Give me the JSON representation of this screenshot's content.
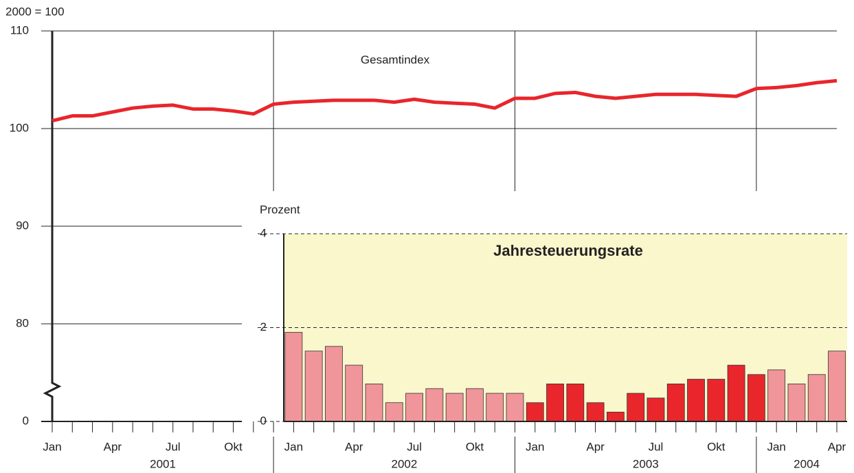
{
  "chart_data": [
    {
      "type": "line",
      "y_label": "2000 = 100",
      "annotation": "Gesamtindex",
      "color": "#e8262c",
      "categories": [
        "Jan",
        null,
        null,
        "Apr",
        null,
        null,
        "Jul",
        null,
        null,
        "Okt",
        null,
        null,
        "Jan",
        null,
        null,
        "Apr",
        null,
        null,
        "Jul",
        null,
        null,
        "Okt",
        null,
        null,
        "Jan",
        null,
        null,
        "Apr",
        null,
        null,
        "Jul",
        null,
        null,
        "Okt",
        null,
        null,
        "Jan",
        null,
        null,
        "Apr"
      ],
      "years": [
        "2001",
        "2002",
        "2003",
        "2004"
      ],
      "values": [
        100.8,
        101.3,
        101.3,
        101.7,
        102.1,
        102.3,
        102.4,
        102.0,
        102.0,
        101.8,
        101.5,
        102.5,
        102.7,
        102.8,
        102.9,
        102.9,
        102.9,
        102.7,
        103.0,
        102.7,
        102.6,
        102.5,
        102.1,
        103.1,
        103.1,
        103.6,
        103.7,
        103.3,
        103.1,
        103.3,
        103.5,
        103.5,
        103.5,
        103.4,
        103.3,
        104.1,
        104.2,
        104.4,
        104.7,
        104.9
      ],
      "ylim": [
        0,
        110
      ],
      "y_break": [
        0,
        80
      ],
      "yticks": [
        0,
        80,
        90,
        100,
        110
      ],
      "grid": true
    },
    {
      "type": "bar",
      "title": "Jahresteuerungsrate",
      "y_label": "Prozent",
      "background": "#faf7cc",
      "values": [
        null,
        null,
        null,
        null,
        null,
        null,
        null,
        null,
        null,
        null,
        null,
        null,
        1.9,
        1.5,
        1.6,
        1.2,
        0.8,
        0.4,
        0.6,
        0.7,
        0.6,
        0.7,
        0.6,
        0.6,
        0.4,
        0.8,
        0.8,
        0.4,
        0.2,
        0.6,
        0.5,
        0.8,
        0.9,
        0.9,
        1.2,
        1.0,
        1.1,
        0.8,
        1.0,
        1.5
      ],
      "colors": [
        null,
        null,
        null,
        null,
        null,
        null,
        null,
        null,
        null,
        null,
        null,
        null,
        "#f0959a",
        "#f0959a",
        "#f0959a",
        "#f0959a",
        "#f0959a",
        "#f0959a",
        "#f0959a",
        "#f0959a",
        "#f0959a",
        "#f0959a",
        "#f0959a",
        "#f0959a",
        "#e8262c",
        "#e8262c",
        "#e8262c",
        "#e8262c",
        "#e8262c",
        "#e8262c",
        "#e8262c",
        "#e8262c",
        "#e8262c",
        "#e8262c",
        "#e8262c",
        "#e8262c",
        "#f0959a",
        "#f0959a",
        "#f0959a",
        "#f0959a"
      ],
      "ylim": [
        0,
        4
      ],
      "yticks": [
        0,
        2,
        4
      ],
      "grid": true
    }
  ]
}
